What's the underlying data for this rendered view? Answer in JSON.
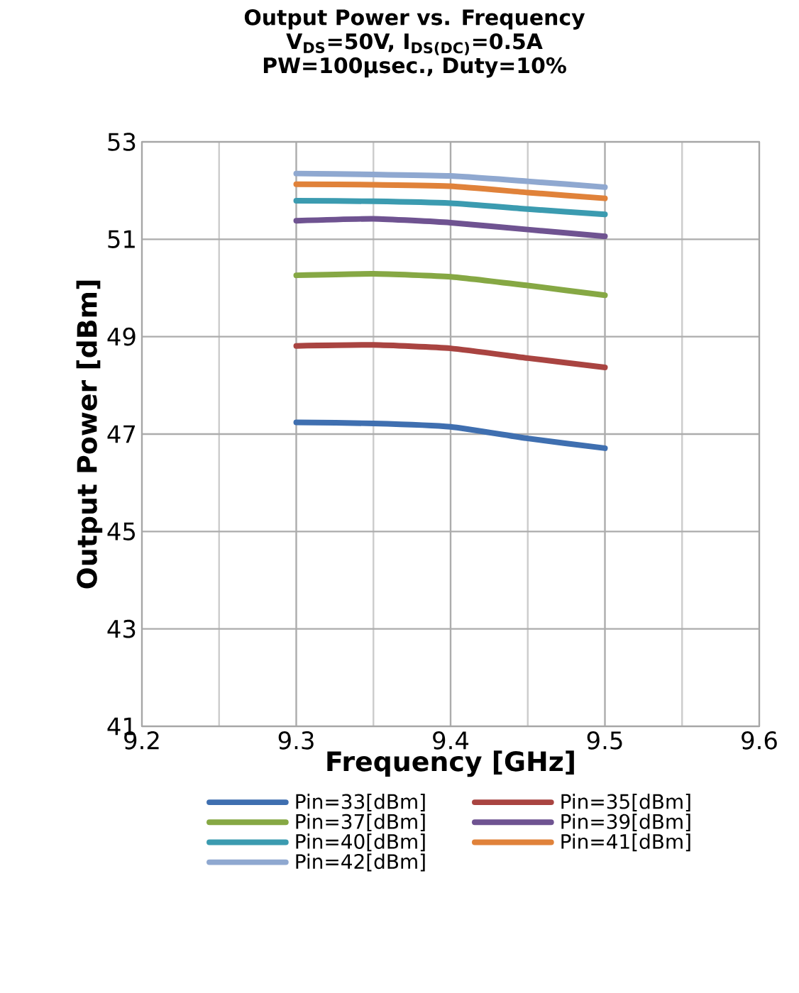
{
  "chart_data": {
    "type": "line",
    "title": "Output Power vs. Frequency",
    "subtitle": "V$_{DS}$=50V, I$_{DS(DC)}$=0.5A",
    "annotations": [
      "PW=100μsec., Duty=10%"
    ],
    "xlabel": "Frequency [GHz]",
    "ylabel": "Output Power [dBm]",
    "x": [
      9.3,
      9.35,
      9.4,
      9.45,
      9.5
    ],
    "xlim": [
      9.2,
      9.6
    ],
    "xticks": [
      9.2,
      9.3,
      9.4,
      9.5,
      9.6
    ],
    "ylim": [
      41,
      53
    ],
    "yticks": [
      41,
      43,
      45,
      47,
      49,
      51,
      53
    ],
    "grid": true,
    "legend": "bottom",
    "marker": "none",
    "line_style": "solid",
    "series": [
      {
        "name": "Pin=33[dBm]",
        "color": "#3f6fb0",
        "values": [
          47.24,
          47.22,
          47.15,
          46.91,
          46.71
        ]
      },
      {
        "name": "Pin=35[dBm]",
        "color": "#a94441",
        "values": [
          48.81,
          48.83,
          48.76,
          48.56,
          48.37
        ]
      },
      {
        "name": "Pin=37[dBm]",
        "color": "#86a844",
        "values": [
          50.26,
          50.29,
          50.23,
          50.05,
          49.85
        ]
      },
      {
        "name": "Pin=39[dBm]",
        "color": "#6f5391",
        "values": [
          51.38,
          51.42,
          51.34,
          51.2,
          51.06
        ]
      },
      {
        "name": "Pin=40[dBm]",
        "color": "#3b9bb0",
        "values": [
          51.79,
          51.78,
          51.74,
          51.62,
          51.51
        ]
      },
      {
        "name": "Pin=41[dBm]",
        "color": "#e0823a",
        "values": [
          52.13,
          52.12,
          52.09,
          51.96,
          51.84
        ]
      },
      {
        "name": "Pin=42[dBm]",
        "color": "#8fa8d0",
        "values": [
          52.35,
          52.33,
          52.3,
          52.19,
          52.07
        ]
      }
    ]
  }
}
